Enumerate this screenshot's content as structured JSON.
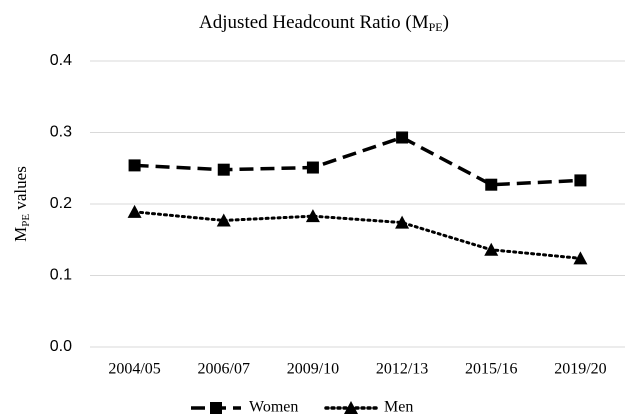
{
  "chart_data": {
    "type": "line",
    "title": [
      "Adjusted Headcount Ratio (M",
      "PE",
      ")"
    ],
    "y_label": [
      "M",
      "PE",
      " values"
    ],
    "categories": [
      "2004/05",
      "2006/07",
      "2009/10",
      "2012/13",
      "2015/16",
      "2019/20"
    ],
    "series": [
      {
        "name": "Women",
        "color": "#000000",
        "marker": "square",
        "dash": "dashed",
        "values": [
          0.254,
          0.248,
          0.251,
          0.293,
          0.227,
          0.233
        ]
      },
      {
        "name": "Men",
        "color": "#000000",
        "marker": "triangle",
        "dash": "dotted",
        "values": [
          0.189,
          0.177,
          0.183,
          0.174,
          0.136,
          0.124
        ]
      }
    ],
    "ylim": [
      0,
      0.4
    ],
    "yticks": [
      {
        "value": 0,
        "label": "0.0"
      },
      0.1,
      0.2,
      0.3,
      0.4
    ],
    "grid": true,
    "legend": "bottom"
  }
}
